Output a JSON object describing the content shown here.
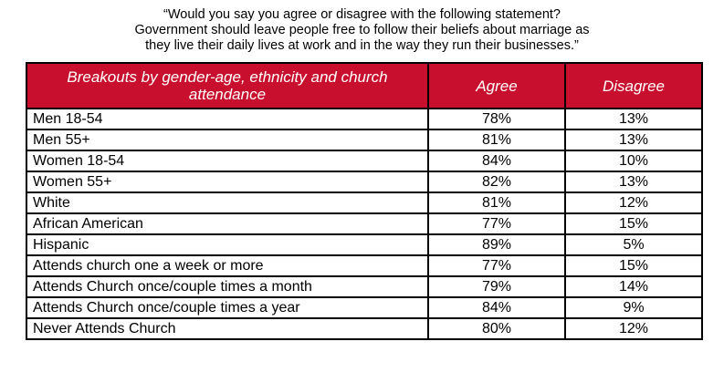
{
  "question": {
    "lines": [
      "“Would you say you agree or disagree with the following statement?",
      "Government should leave people free to follow their beliefs about marriage as",
      "they live their daily lives at work and in the way they run their businesses.”"
    ]
  },
  "colors": {
    "header_bg": "#c8102e",
    "header_text": "#ffffff",
    "border": "#000000"
  },
  "chart_data": {
    "type": "table",
    "columns": [
      "Breakouts by gender-age, ethnicity and church attendance",
      "Agree",
      "Disagree"
    ],
    "rows": [
      {
        "label": "Men 18-54",
        "agree": "78%",
        "disagree": "13%"
      },
      {
        "label": "Men 55+",
        "agree": "81%",
        "disagree": "13%"
      },
      {
        "label": "Women 18-54",
        "agree": "84%",
        "disagree": "10%"
      },
      {
        "label": "Women 55+",
        "agree": "82%",
        "disagree": "13%"
      },
      {
        "label": "White",
        "agree": "81%",
        "disagree": "12%"
      },
      {
        "label": "African American",
        "agree": "77%",
        "disagree": "15%"
      },
      {
        "label": "Hispanic",
        "agree": "89%",
        "disagree": "5%"
      },
      {
        "label": "Attends church one a week or more",
        "agree": "77%",
        "disagree": "15%"
      },
      {
        "label": "Attends Church once/couple times a month",
        "agree": "79%",
        "disagree": "14%"
      },
      {
        "label": "Attends Church once/couple times a year",
        "agree": "84%",
        "disagree": "9%"
      },
      {
        "label": "Never Attends Church",
        "agree": "80%",
        "disagree": "12%"
      }
    ]
  }
}
